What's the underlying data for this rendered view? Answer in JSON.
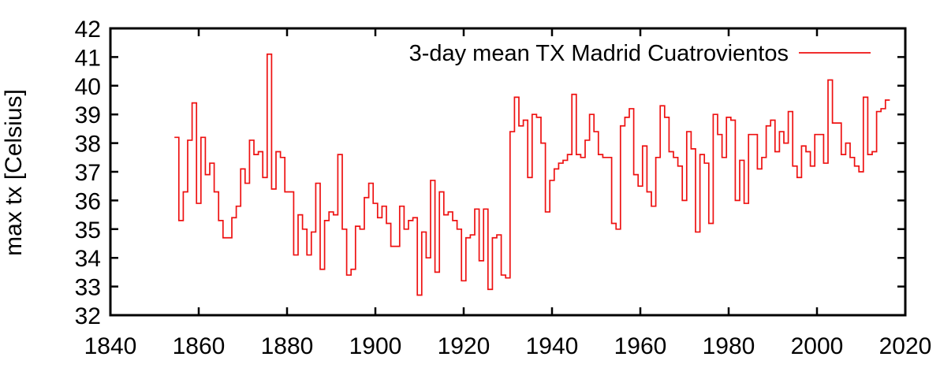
{
  "chart_data": {
    "type": "line",
    "style": "histeps-step-plot",
    "title": "",
    "legend_label": "3-day mean TX Madrid Cuatrovientos",
    "ylabel": "max tx [Celsius]",
    "xlabel": "",
    "xlim": [
      1840,
      2020
    ],
    "ylim": [
      32,
      42
    ],
    "xticks": [
      1840,
      1860,
      1880,
      1900,
      1920,
      1940,
      1960,
      1980,
      2000,
      2020
    ],
    "yticks": [
      32,
      33,
      34,
      35,
      36,
      37,
      38,
      39,
      40,
      41,
      42
    ],
    "grid": false,
    "legend_position": "top-right-inside",
    "line_color": "#ee1111",
    "axis_color": "#000000",
    "background_color": "#ffffff",
    "series": [
      {
        "name": "3-day mean TX Madrid Cuatrovientos",
        "x_start": 1855,
        "x_step": 1,
        "x_end": 2016,
        "values": [
          38.2,
          35.3,
          36.3,
          38.1,
          39.4,
          35.9,
          38.2,
          36.9,
          37.3,
          36.3,
          35.3,
          34.7,
          34.7,
          35.4,
          35.8,
          37.1,
          36.6,
          38.1,
          37.6,
          37.7,
          36.8,
          41.1,
          36.4,
          37.7,
          37.5,
          36.3,
          36.3,
          34.1,
          35.5,
          35.0,
          34.1,
          34.9,
          36.6,
          33.6,
          35.3,
          35.6,
          35.5,
          37.6,
          35.0,
          33.4,
          33.6,
          35.1,
          35.0,
          36.1,
          36.6,
          35.9,
          35.4,
          35.8,
          35.2,
          34.4,
          34.4,
          35.8,
          35.0,
          35.3,
          35.4,
          32.7,
          34.9,
          34.0,
          36.7,
          33.5,
          36.3,
          35.5,
          35.6,
          35.3,
          35.0,
          33.2,
          34.7,
          34.8,
          35.7,
          33.9,
          35.7,
          32.9,
          34.7,
          34.8,
          33.4,
          33.3,
          38.4,
          39.6,
          38.6,
          38.8,
          36.8,
          39.0,
          38.9,
          38.0,
          35.6,
          36.7,
          37.1,
          37.3,
          37.4,
          37.6,
          39.7,
          37.6,
          37.5,
          38.1,
          39.0,
          38.4,
          37.6,
          37.5,
          37.5,
          35.2,
          35.0,
          38.6,
          38.9,
          39.2,
          36.9,
          36.5,
          37.9,
          36.3,
          35.8,
          37.5,
          39.3,
          38.9,
          37.7,
          37.5,
          37.2,
          36.0,
          38.4,
          37.8,
          34.9,
          37.6,
          37.3,
          35.2,
          39.0,
          38.3,
          37.5,
          38.9,
          38.8,
          36.0,
          37.4,
          35.9,
          38.3,
          38.3,
          37.1,
          37.5,
          38.6,
          38.8,
          37.7,
          38.4,
          38.0,
          39.1,
          37.2,
          36.8,
          37.9,
          37.7,
          37.2,
          38.3,
          38.3,
          37.3,
          40.2,
          38.7,
          38.7,
          37.6,
          38.0,
          37.5,
          37.2,
          37.0,
          39.6,
          37.6,
          37.7,
          39.1,
          39.2,
          39.5
        ]
      }
    ]
  }
}
